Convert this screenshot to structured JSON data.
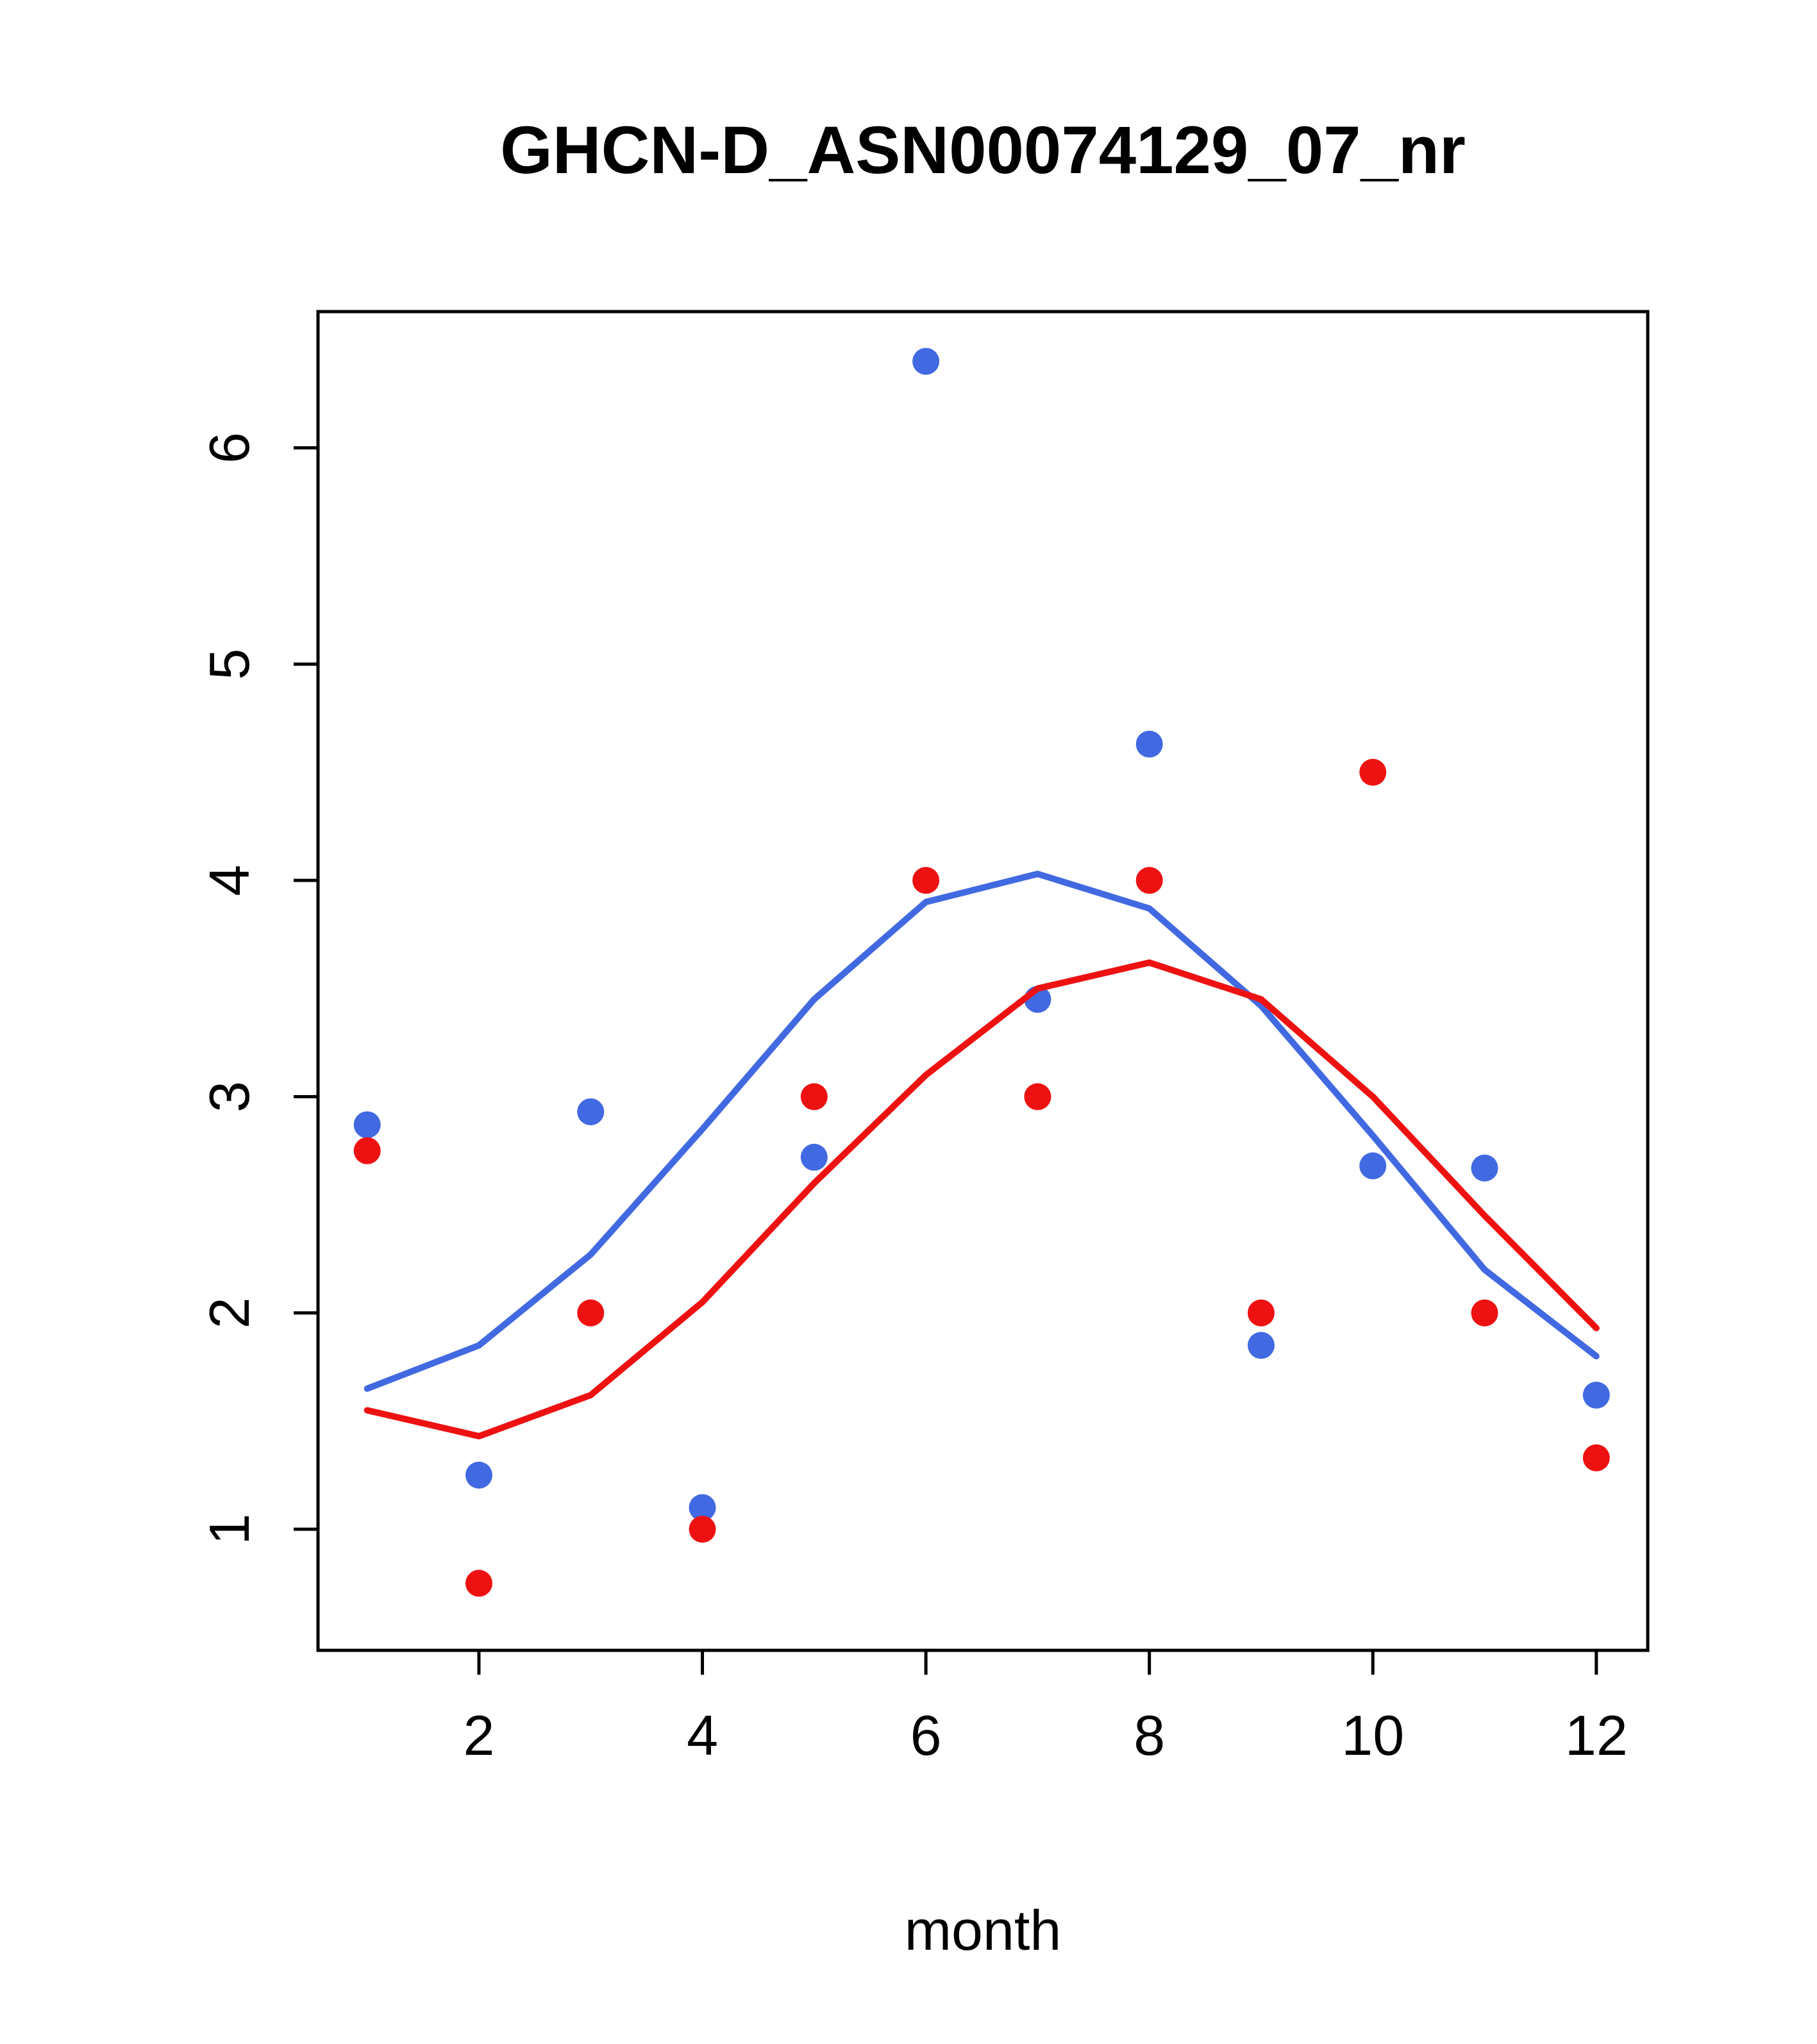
{
  "title": "GHCN-D_ASN00074129_07_nr",
  "chart_data": {
    "type": "scatter",
    "title": "GHCN-D_ASN00074129_07_nr",
    "xlabel": "month",
    "ylabel": "",
    "xlim": [
      0.56,
      12.46
    ],
    "ylim": [
      0.44,
      6.63
    ],
    "xticks": [
      2,
      4,
      6,
      8,
      10,
      12
    ],
    "yticks": [
      1,
      2,
      3,
      4,
      5,
      6
    ],
    "grid": false,
    "legend": "none",
    "colors": {
      "blue": "#4169e1",
      "red": "#ee1111"
    },
    "categories": [
      1,
      2,
      3,
      4,
      5,
      6,
      7,
      8,
      9,
      10,
      11,
      12
    ],
    "series": [
      {
        "name": "blue-points",
        "type": "points",
        "color": "blue",
        "x": [
          1,
          2,
          3,
          4,
          5,
          6,
          7,
          8,
          9,
          10,
          11,
          12
        ],
        "y": [
          2.87,
          1.25,
          2.93,
          1.1,
          2.72,
          6.4,
          3.45,
          4.63,
          1.85,
          2.68,
          2.67,
          1.62
        ]
      },
      {
        "name": "red-points",
        "type": "points",
        "color": "red",
        "x": [
          1,
          2,
          3,
          4,
          5,
          6,
          7,
          8,
          9,
          10,
          11,
          12
        ],
        "y": [
          2.75,
          0.75,
          2.0,
          1.0,
          3.0,
          4.0,
          3.0,
          4.0,
          2.0,
          4.5,
          2.0,
          1.33
        ]
      },
      {
        "name": "blue-line",
        "type": "line",
        "color": "blue",
        "x": [
          1,
          2,
          3,
          4,
          5,
          6,
          7,
          8,
          9,
          10,
          11,
          12
        ],
        "y": [
          1.65,
          1.85,
          2.27,
          2.85,
          3.45,
          3.9,
          4.03,
          3.87,
          3.42,
          2.82,
          2.2,
          1.8
        ]
      },
      {
        "name": "red-line",
        "type": "line",
        "color": "red",
        "x": [
          1,
          2,
          3,
          4,
          5,
          6,
          7,
          8,
          9,
          10,
          11,
          12
        ],
        "y": [
          1.55,
          1.43,
          1.62,
          2.05,
          2.6,
          3.1,
          3.5,
          3.62,
          3.45,
          3.0,
          2.45,
          1.93
        ]
      }
    ]
  }
}
